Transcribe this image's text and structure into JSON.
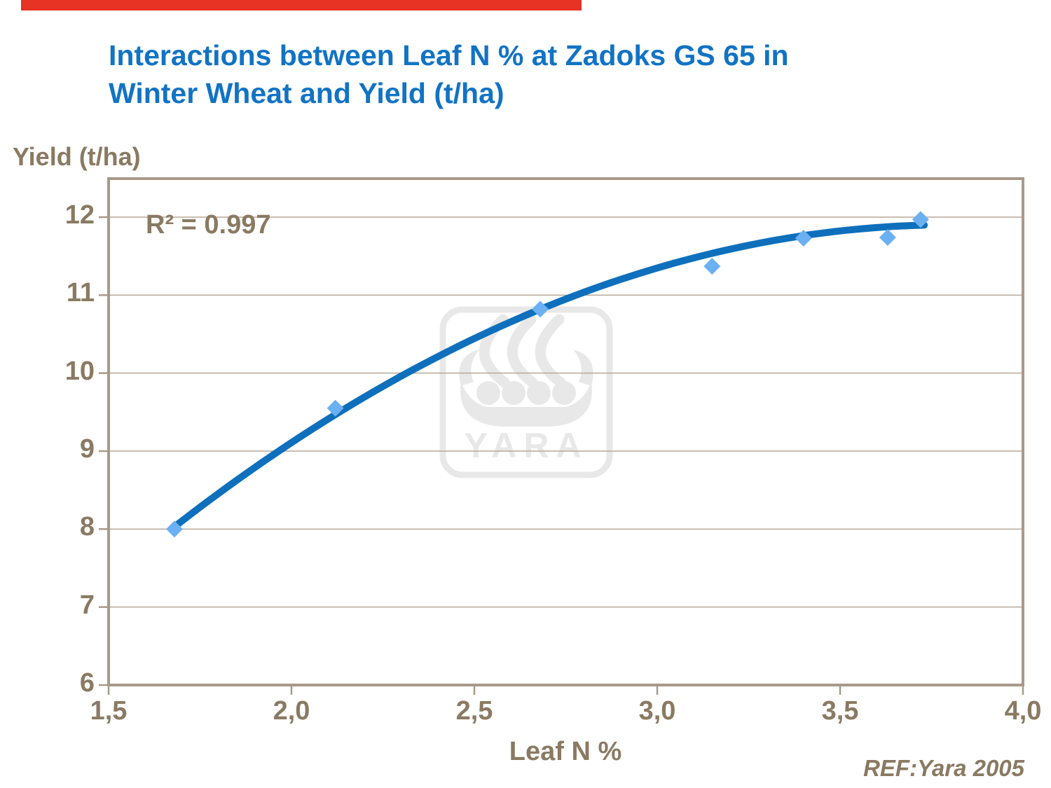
{
  "slide": {
    "title_line1": "Interactions between Leaf N % at Zadoks GS 65 in",
    "title_line2": "Winter Wheat and Yield (t/ha)",
    "reference": "REF:Yara 2005",
    "accent_bar_color": "#e63323",
    "title_color": "#1173c4",
    "text_color": "#8a7a62"
  },
  "chart_data": {
    "type": "scatter",
    "title": "Interactions between Leaf N % at Zadoks GS 65 in Winter Wheat and Yield (t/ha)",
    "xlabel": "Leaf N %",
    "ylabel": "Yield (t/ha)",
    "xlim": [
      1.5,
      4.0
    ],
    "ylim": [
      6,
      12.494
    ],
    "grid": "horizontal",
    "legend": "none",
    "x_ticks": [
      {
        "v": 1.5,
        "label": "1,5"
      },
      {
        "v": 2.0,
        "label": "2,0"
      },
      {
        "v": 2.5,
        "label": "2,5"
      },
      {
        "v": 3.0,
        "label": "3,0"
      },
      {
        "v": 3.5,
        "label": "3,5"
      },
      {
        "v": 4.0,
        "label": "4,0"
      }
    ],
    "y_ticks": [
      {
        "v": 6,
        "label": "6"
      },
      {
        "v": 7,
        "label": "7"
      },
      {
        "v": 8,
        "label": "8"
      },
      {
        "v": 9,
        "label": "9"
      },
      {
        "v": 10,
        "label": "10"
      },
      {
        "v": 11,
        "label": "11"
      },
      {
        "v": 12,
        "label": "12"
      }
    ],
    "points": [
      [
        1.68,
        8.0
      ],
      [
        2.12,
        9.55
      ],
      [
        2.68,
        10.82
      ],
      [
        3.15,
        11.37
      ],
      [
        3.4,
        11.73
      ],
      [
        3.63,
        11.74
      ],
      [
        3.72,
        11.97
      ]
    ],
    "trendline": {
      "type": "quadratic",
      "a": -0.523,
      "b": 6.534,
      "c": -0.859,
      "domain": [
        1.68,
        3.73
      ],
      "annotation": "R² = 0.997"
    },
    "watermark_text": "YARA",
    "colors": {
      "curve": "#0e70bc",
      "point": "#6bb0f2",
      "gridline": "#b6a999",
      "frame": "#a79a8a",
      "watermark": "#e8e8e8",
      "label_text": "#8a7a62"
    }
  }
}
